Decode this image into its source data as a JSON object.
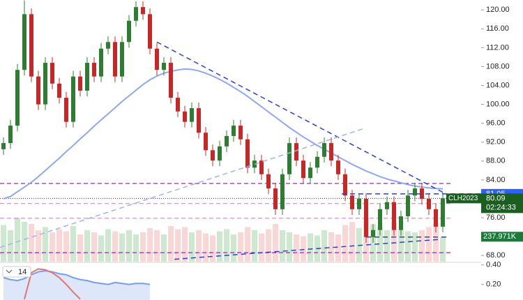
{
  "chart_data": {
    "type": "candlestick",
    "symbol": "CLH2023",
    "countdown": "02:24:33",
    "last_price": 80.09,
    "alert_price": 81.05,
    "up_color": "#2e7d32",
    "down_color": "#c62828",
    "ylim": [
      66.7,
      122.1
    ],
    "yticks": [
      {
        "value": 120,
        "label": "120.00"
      },
      {
        "value": 116,
        "label": "116.00"
      },
      {
        "value": 112,
        "label": "112.00"
      },
      {
        "value": 108,
        "label": "108.00"
      },
      {
        "value": 104,
        "label": "104.00"
      },
      {
        "value": 100,
        "label": "100.00"
      },
      {
        "value": 96,
        "label": "96.00"
      },
      {
        "value": 92,
        "label": "92.00"
      },
      {
        "value": 88,
        "label": "88.00"
      },
      {
        "value": 84,
        "label": "84.00"
      },
      {
        "value": 76,
        "label": "76.00"
      },
      {
        "value": 68,
        "label": "68.00"
      }
    ],
    "open": [
      90.5,
      91.8,
      95.5,
      107.3,
      119.1,
      105.9,
      100,
      108.8,
      104.4,
      101.4,
      96.3,
      105.9,
      102.9,
      108.8,
      105.9,
      111.8,
      113.2,
      105.9,
      113.2,
      117.7,
      120.6,
      119.1,
      111.8,
      107.3,
      108.8,
      101.4,
      98.5,
      96.3,
      99.2,
      94.0,
      90.3,
      88.1,
      91.1,
      93.3,
      95.5,
      92.6,
      86.6,
      88.1,
      85.2,
      82.2,
      77.8,
      85.2,
      91.8,
      88.1,
      84.4,
      86.6,
      88.9,
      91.8,
      88.1,
      85.2,
      80.7,
      77.8,
      80.0,
      71.9,
      73.4,
      77.8,
      79.3,
      73.4,
      76.3,
      80.7,
      82.2,
      80.0,
      77.8,
      74.1
    ],
    "high": [
      93.0,
      96.7,
      108.5,
      122.0,
      120.3,
      107.1,
      110.0,
      110.0,
      105.6,
      102.6,
      107.1,
      107.1,
      110.0,
      110.0,
      113.0,
      114.4,
      114.4,
      114.4,
      118.9,
      121.8,
      121.8,
      120.3,
      113.0,
      110.0,
      110.0,
      102.6,
      99.7,
      100.4,
      100.4,
      95.2,
      91.5,
      92.3,
      94.5,
      96.7,
      96.7,
      93.8,
      89.3,
      89.3,
      86.4,
      83.4,
      86.4,
      93.0,
      93.0,
      89.3,
      87.8,
      90.1,
      93.0,
      93.0,
      89.3,
      86.4,
      81.9,
      81.2,
      81.2,
      74.6,
      79.0,
      80.5,
      80.5,
      77.5,
      81.9,
      83.4,
      83.4,
      81.2,
      79.0,
      81.3
    ],
    "low": [
      89.3,
      90.6,
      94.3,
      106.1,
      104.7,
      98.8,
      98.8,
      103.2,
      100.2,
      95.1,
      95.1,
      101.7,
      101.7,
      104.7,
      104.7,
      110.6,
      104.7,
      104.7,
      112.0,
      116.5,
      117.9,
      110.6,
      106.1,
      106.1,
      100.2,
      97.3,
      95.1,
      95.1,
      92.8,
      89.1,
      86.9,
      86.9,
      89.9,
      92.1,
      91.4,
      85.4,
      85.4,
      84.0,
      81.0,
      76.6,
      76.6,
      84.0,
      86.9,
      83.2,
      83.2,
      85.4,
      87.7,
      86.9,
      84.0,
      79.5,
      76.6,
      76.6,
      70.7,
      70.7,
      72.2,
      76.6,
      72.2,
      72.2,
      75.1,
      79.5,
      78.8,
      76.6,
      72.9,
      72.9
    ],
    "close": [
      91.8,
      95.5,
      107.3,
      119.1,
      105.9,
      100,
      108.8,
      104.4,
      101.4,
      96.3,
      105.9,
      102.9,
      108.8,
      105.9,
      111.8,
      113.2,
      105.9,
      113.2,
      117.7,
      120.6,
      119.1,
      111.8,
      107.3,
      108.8,
      101.4,
      98.5,
      96.3,
      99.2,
      94.0,
      90.3,
      88.1,
      91.1,
      93.3,
      95.5,
      92.6,
      86.6,
      88.1,
      85.2,
      82.2,
      77.8,
      85.2,
      91.8,
      88.1,
      84.4,
      86.6,
      88.9,
      91.8,
      88.1,
      85.2,
      80.7,
      77.8,
      80.0,
      71.9,
      73.4,
      77.8,
      79.3,
      73.4,
      76.3,
      80.7,
      82.2,
      80.0,
      77.8,
      74.1,
      80.1
    ],
    "moving_average": {
      "color": "#8ea8f0",
      "values": [
        80,
        80.5,
        81.5,
        82.5,
        83.5,
        84.7,
        86,
        87.3,
        88.6,
        90,
        91.3,
        92.7,
        94,
        95.4,
        96.7,
        98,
        99.3,
        100.6,
        101.8,
        103,
        104.2,
        105.2,
        106,
        106.6,
        107,
        107.3,
        107.5,
        107.4,
        107.1,
        106.6,
        106,
        105.3,
        104.5,
        103.6,
        102.7,
        101.7,
        100.6,
        99.5,
        98.4,
        97.3,
        96.2,
        95.1,
        94.1,
        93.1,
        92.2,
        91.3,
        90.5,
        89.7,
        88.9,
        88.1,
        87.3,
        86.6,
        85.9,
        85.3,
        84.7,
        84.2,
        83.8,
        83.4,
        83.0,
        82.7,
        82.5,
        82.3,
        82.2,
        82.1
      ]
    },
    "volume": {
      "values": [
        350,
        300,
        420,
        380,
        360,
        300,
        330,
        280,
        310,
        290,
        340,
        260,
        300,
        280,
        250,
        310,
        290,
        270,
        300,
        260,
        280,
        320,
        300,
        260,
        340,
        310,
        330,
        280,
        300,
        270,
        250,
        290,
        310,
        260,
        280,
        330,
        300,
        270,
        310,
        360,
        300,
        280,
        260,
        240,
        270,
        250,
        300,
        280,
        260,
        350,
        380,
        320,
        420,
        360,
        330,
        300,
        380,
        310,
        290,
        280,
        300,
        330,
        360,
        237.971
      ],
      "last_label": "237.971K"
    },
    "hlines": [
      {
        "value": 83.25,
        "color": "#9c27b0"
      },
      {
        "value": 79.0,
        "color": "#ce93d8"
      },
      {
        "value": 75.9,
        "color": "#ce93d8"
      },
      {
        "value": 68.6,
        "color": "#9c27b0"
      }
    ],
    "trendlines": [
      {
        "from": [
          22,
          113.2
        ],
        "to": [
          63.5,
          81.0
        ],
        "color": "#2b3fd6"
      },
      {
        "from": [
          24.5,
          67.2
        ],
        "to": [
          62.5,
          71.4
        ],
        "color": "#2b3fd6"
      },
      {
        "from": [
          -0.5,
          69.7
        ],
        "to": [
          51.5,
          94.8
        ],
        "color": "#9fb2f0"
      },
      {
        "from": [
          48.5,
          81.05
        ],
        "to": [
          68.5,
          81.05
        ],
        "color": "#2b3fd6"
      },
      {
        "from": [
          52,
          71.9
        ],
        "to": [
          64,
          71.9
        ],
        "color": "#2b3fd6"
      }
    ],
    "lower": {
      "length": 14,
      "ylim": [
        0.04,
        0.42
      ],
      "yticks": [
        {
          "value": 0.4,
          "label": "0.40"
        },
        {
          "value": 0.2,
          "label": "0.20"
        }
      ],
      "series": [
        {
          "color": "#7b9be8",
          "values": [
            0.27,
            0.25,
            0.24,
            0.26,
            0.3,
            0.33,
            0.34,
            0.33,
            0.31,
            0.3,
            0.27,
            0.25,
            0.24,
            0.22,
            0.21,
            0.2,
            0.22,
            0.21,
            0.2,
            0.21,
            0.21,
            0.2
          ]
        },
        {
          "color": "#e57373",
          "values": [
            null,
            null,
            null,
            0.05,
            0.32,
            0.36,
            0.35,
            0.32,
            0.27,
            0.2,
            0.12,
            0.05,
            null,
            null,
            null,
            null,
            null,
            null,
            null,
            null,
            null,
            null
          ]
        }
      ]
    }
  }
}
